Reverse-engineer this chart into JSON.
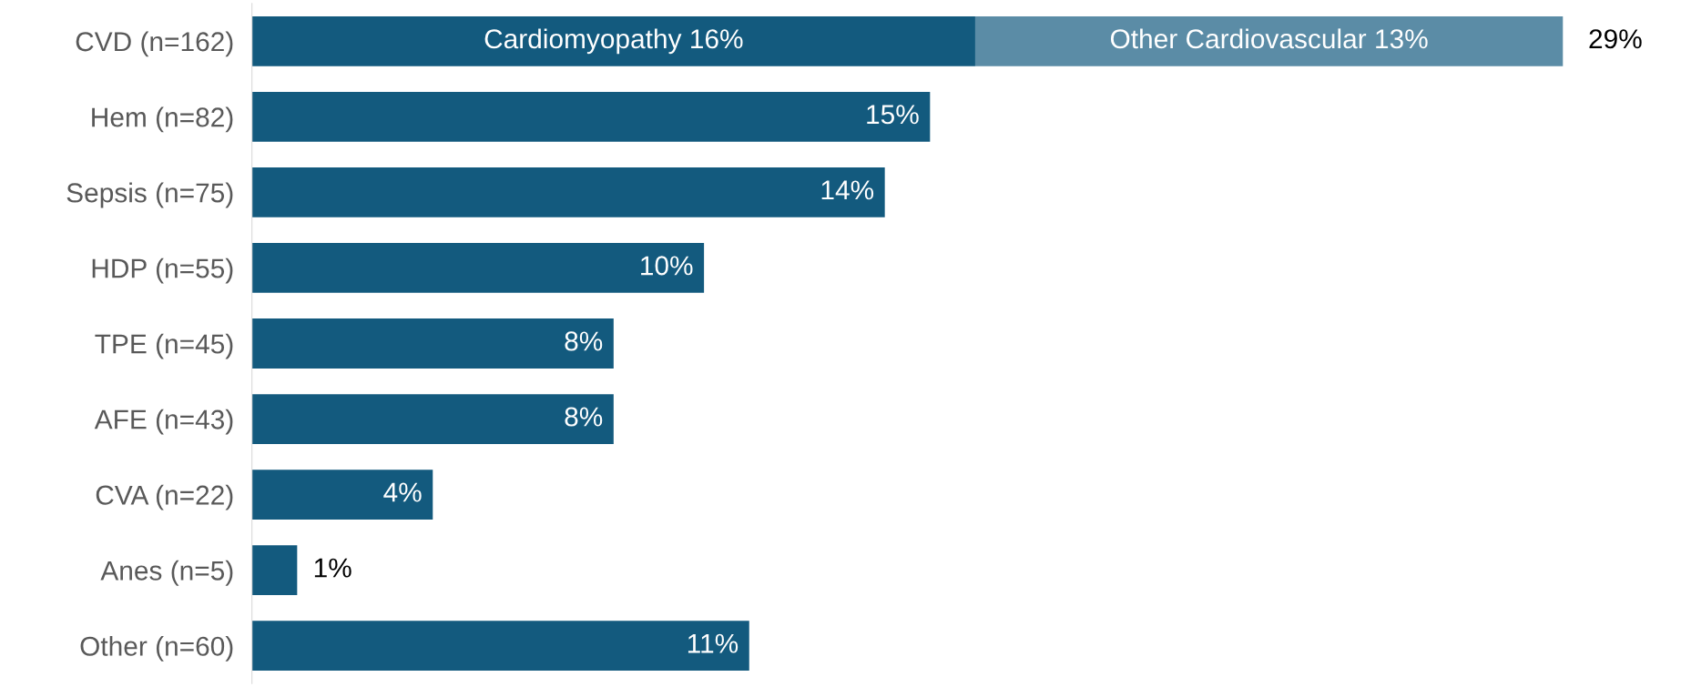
{
  "chart_data": {
    "type": "bar",
    "orientation": "horizontal",
    "stacked": true,
    "categories": [
      "CVD (n=162)",
      "Hem (n=82)",
      "Sepsis (n=75)",
      "HDP (n=55)",
      "TPE (n=45)",
      "AFE (n=43)",
      "CVA (n=22)",
      "Anes (n=5)",
      "Other (n=60)"
    ],
    "series": [
      {
        "color": "#135a7e",
        "values": [
          16,
          15,
          14,
          10,
          8,
          8,
          4,
          1,
          11
        ],
        "value_labels": [
          "Cardiomyopathy 16%",
          "15%",
          "14%",
          "10%",
          "8%",
          "8%",
          "4%",
          "1%",
          "11%"
        ]
      },
      {
        "color": "#5b8ca6",
        "values": [
          13,
          null,
          null,
          null,
          null,
          null,
          null,
          null,
          null
        ],
        "value_labels": [
          "Other Cardiovascular 13%",
          null,
          null,
          null,
          null,
          null,
          null,
          null,
          null
        ]
      }
    ],
    "totals": [
      "29%",
      null,
      null,
      null,
      null,
      null,
      null,
      null,
      null
    ],
    "grid": false,
    "legend": false
  }
}
